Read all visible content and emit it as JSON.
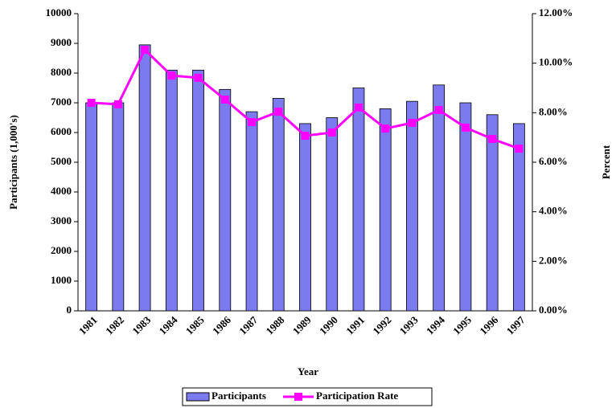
{
  "chart_data": {
    "type": "bar_line",
    "categories": [
      "1981",
      "1982",
      "1983",
      "1984",
      "1985",
      "1986",
      "1987",
      "1988",
      "1989",
      "1990",
      "1991",
      "1992",
      "1993",
      "1994",
      "1995",
      "1996",
      "1997"
    ],
    "series": [
      {
        "name": "Participants",
        "type": "bar",
        "color": "#7b7bef",
        "values": [
          7000,
          7000,
          8950,
          8100,
          8100,
          7450,
          6700,
          7150,
          6300,
          6500,
          7500,
          6800,
          7050,
          7600,
          7000,
          6600,
          6300
        ]
      },
      {
        "name": "Participation Rate",
        "type": "line",
        "axis": "y2",
        "color": "#ff00ff",
        "values": [
          8.4,
          8.34,
          10.54,
          9.5,
          9.41,
          8.53,
          7.62,
          8.04,
          7.07,
          7.2,
          8.21,
          7.36,
          7.59,
          8.11,
          7.4,
          6.94,
          6.55
        ]
      }
    ],
    "xlabel": "Year",
    "ylabel": "Participants (1,000's)",
    "y2label": "Percent",
    "ylim": [
      0,
      10000
    ],
    "yticks": [
      0,
      1000,
      2000,
      3000,
      4000,
      5000,
      6000,
      7000,
      8000,
      9000,
      10000
    ],
    "y2lim": [
      0,
      12
    ],
    "y2ticks": [
      {
        "value": 0,
        "label": "0.00%"
      },
      {
        "value": 2,
        "label": "2.00%"
      },
      {
        "value": 4,
        "label": "4.00%"
      },
      {
        "value": 6,
        "label": "6.00%"
      },
      {
        "value": 8,
        "label": "8.00%"
      },
      {
        "value": 10,
        "label": "10.00%"
      },
      {
        "value": 12,
        "label": "12.00%"
      }
    ],
    "legend": "bottom"
  }
}
